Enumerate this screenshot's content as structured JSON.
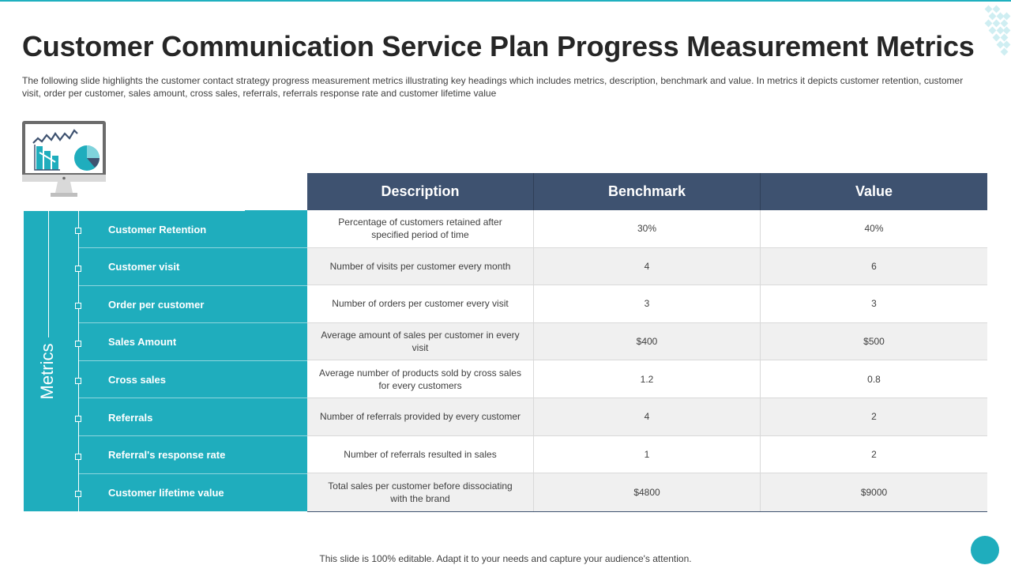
{
  "slide": {
    "title": "Customer Communication Service Plan Progress Measurement Metrics",
    "subtitle": "The following  slide highlights the customer contact strategy progress measurement  metrics illustrating key headings which includes metrics, description, benchmark and value.  In metrics it depicts customer retention,  customer visit,  order per customer,  sales amount,  cross sales,  referrals,  referrals  response rate and customer lifetime value",
    "footer": "This slide is 100% editable. Adapt it to your needs and capture your audience's attention."
  },
  "metrics_label": "Metrics",
  "table": {
    "headers": [
      "Description",
      "Benchmark",
      "Value"
    ],
    "rows": [
      {
        "metric": "Customer  Retention",
        "description": "Percentage of customers retained after specified period of time",
        "benchmark": "30%",
        "value": "40%"
      },
      {
        "metric": "Customer  visit",
        "description": "Number  of visits per customer every  month",
        "benchmark": "4",
        "value": "6"
      },
      {
        "metric": "Order per customer",
        "description": "Number  of orders per customer every visit",
        "benchmark": "3",
        "value": "3"
      },
      {
        "metric": "Sales Amount",
        "description": "Average  amount  of sales per customer in every visit",
        "benchmark": "$400",
        "value": "$500"
      },
      {
        "metric": "Cross  sales",
        "description": "Average  number of products sold by cross sales for every customers",
        "benchmark": "1.2",
        "value": "0.8"
      },
      {
        "metric": "Referrals",
        "description": "Number of referrals provided  by every customer",
        "benchmark": "4",
        "value": "2"
      },
      {
        "metric": "Referral's response  rate",
        "description": "Number of referrals resulted in sales",
        "benchmark": "1",
        "value": "2"
      },
      {
        "metric": "Customer  lifetime value",
        "description": "Total sales per customer before dissociating with the brand",
        "benchmark": "$4800",
        "value": "$9000"
      }
    ]
  },
  "icons": {
    "monitor": "analytics-monitor-icon",
    "decoration": "diamond-dots-icon",
    "corner": "circle-icon"
  },
  "colors": {
    "teal": "#1fadbd",
    "header_navy": "#3e5270",
    "alt_row": "#f0f0f0"
  }
}
